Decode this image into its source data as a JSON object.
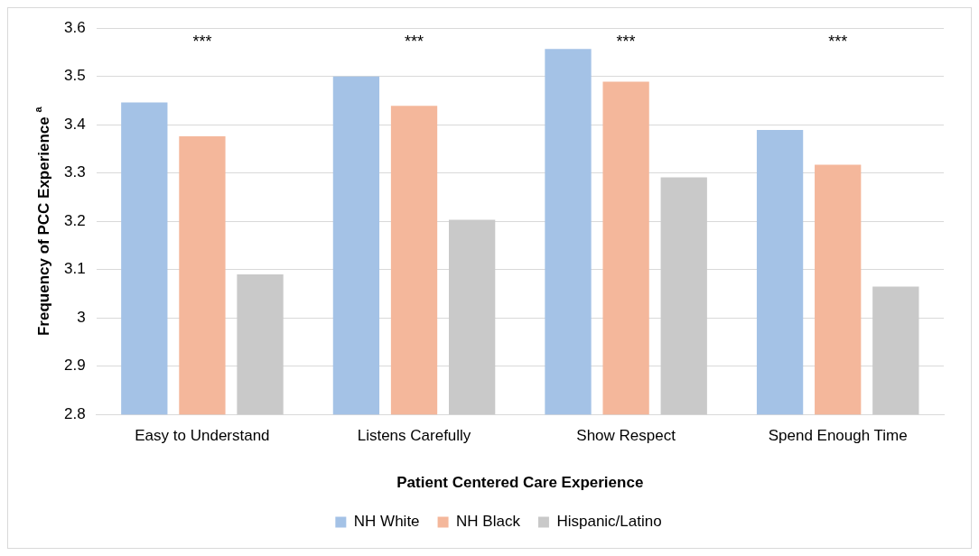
{
  "chart_data": {
    "type": "bar",
    "xlabel": "Patient Centered Care Experience",
    "ylabel": "Frequency of PCC Experience $^{a}$",
    "categories": [
      "Easy to Understand",
      "Listens Carefully",
      "Show Respect",
      "Spend Enough Time"
    ],
    "series": [
      {
        "name": "NH White",
        "color": "#a4c2e6",
        "values": [
          3.446,
          3.5,
          3.557,
          3.389
        ]
      },
      {
        "name": "NH Black",
        "color": "#f4b79b",
        "values": [
          3.376,
          3.439,
          3.489,
          3.317
        ]
      },
      {
        "name": "Hispanic/Latino",
        "color": "#c9c9c9",
        "values": [
          3.09,
          3.203,
          3.291,
          3.065
        ]
      }
    ],
    "ylim": [
      2.8,
      3.6
    ],
    "yticks": [
      2.8,
      2.9,
      3,
      3.1,
      3.2,
      3.3,
      3.4,
      3.5,
      3.6
    ],
    "annotations": [
      "***",
      "***",
      "***",
      "***"
    ],
    "grid": "y",
    "legend": "bottom"
  }
}
